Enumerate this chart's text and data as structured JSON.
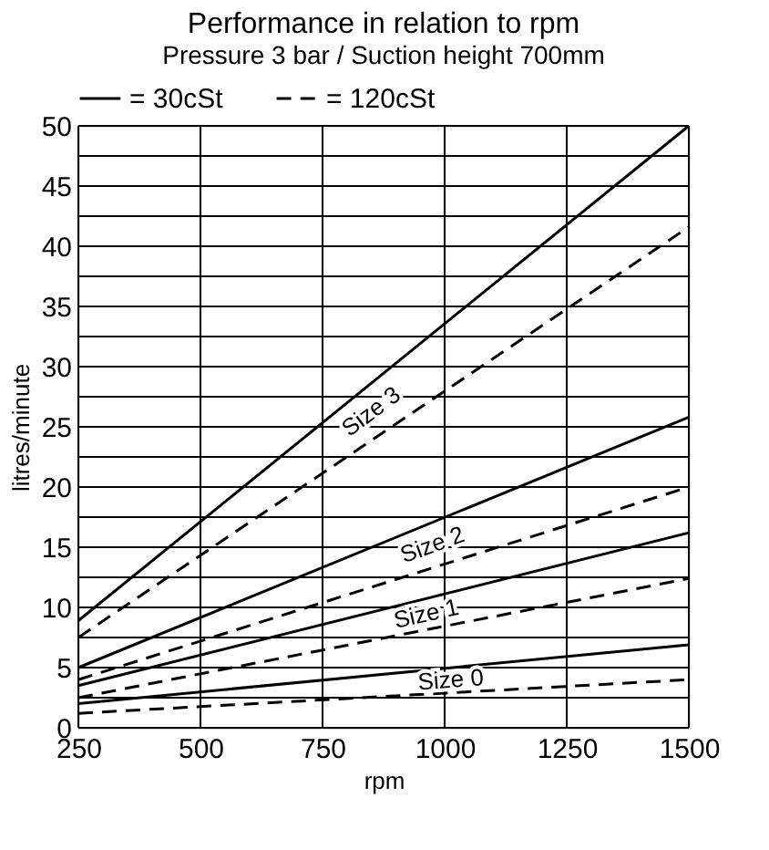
{
  "chart_data": {
    "type": "line",
    "title": "Performance in relation to rpm",
    "subtitle": "Pressure 3 bar / Suction height 700mm",
    "xlabel": "rpm",
    "ylabel": "litres/minute",
    "x": [
      250,
      1500
    ],
    "series": [
      {
        "name": "= 30cSt",
        "color": "#000000",
        "line_style": "solid",
        "values": [
          8.9,
          50
        ]
      },
      {
        "name": "= 120cSt",
        "color": "#000000",
        "line_style": "dashed",
        "values": [
          7.5,
          41.6
        ]
      },
      {
        "color": "#000000",
        "line_style": "solid",
        "values": [
          5,
          25.8
        ]
      },
      {
        "color": "#000000",
        "line_style": "dashed",
        "values": [
          4,
          20
        ]
      },
      {
        "color": "#000000",
        "line_style": "solid",
        "values": [
          3.5,
          16.2
        ]
      },
      {
        "color": "#000000",
        "line_style": "dashed",
        "values": [
          2.5,
          12.4
        ]
      },
      {
        "color": "#000000",
        "line_style": "solid",
        "values": [
          2,
          6.9
        ]
      },
      {
        "color": "#000000",
        "line_style": "dashed",
        "values": [
          1.2,
          4
        ]
      }
    ],
    "annotations": [
      "Size 3",
      "Size 2",
      "Size 1",
      "Size 0"
    ],
    "xlim": [
      250,
      1500
    ],
    "ylim": [
      0,
      50
    ],
    "xticks": [
      250,
      500,
      750,
      1000,
      1250,
      1500
    ],
    "yticks": [
      0,
      {
        "value": 2.5,
        "label": null
      },
      5,
      {
        "value": 7.5,
        "label": null
      },
      10,
      {
        "value": 12.5,
        "label": null
      },
      15,
      {
        "value": 17.5,
        "label": null
      },
      20,
      {
        "value": 22.5,
        "label": null
      },
      25,
      {
        "value": 27.5,
        "label": null
      },
      30,
      {
        "value": 32.5,
        "label": null
      },
      35,
      {
        "value": 37.5,
        "label": null
      },
      40,
      {
        "value": 42.5,
        "label": null
      },
      45,
      {
        "value": 47.5,
        "label": null
      },
      50
    ],
    "grid": true,
    "legend": "top",
    "marker": "none"
  }
}
